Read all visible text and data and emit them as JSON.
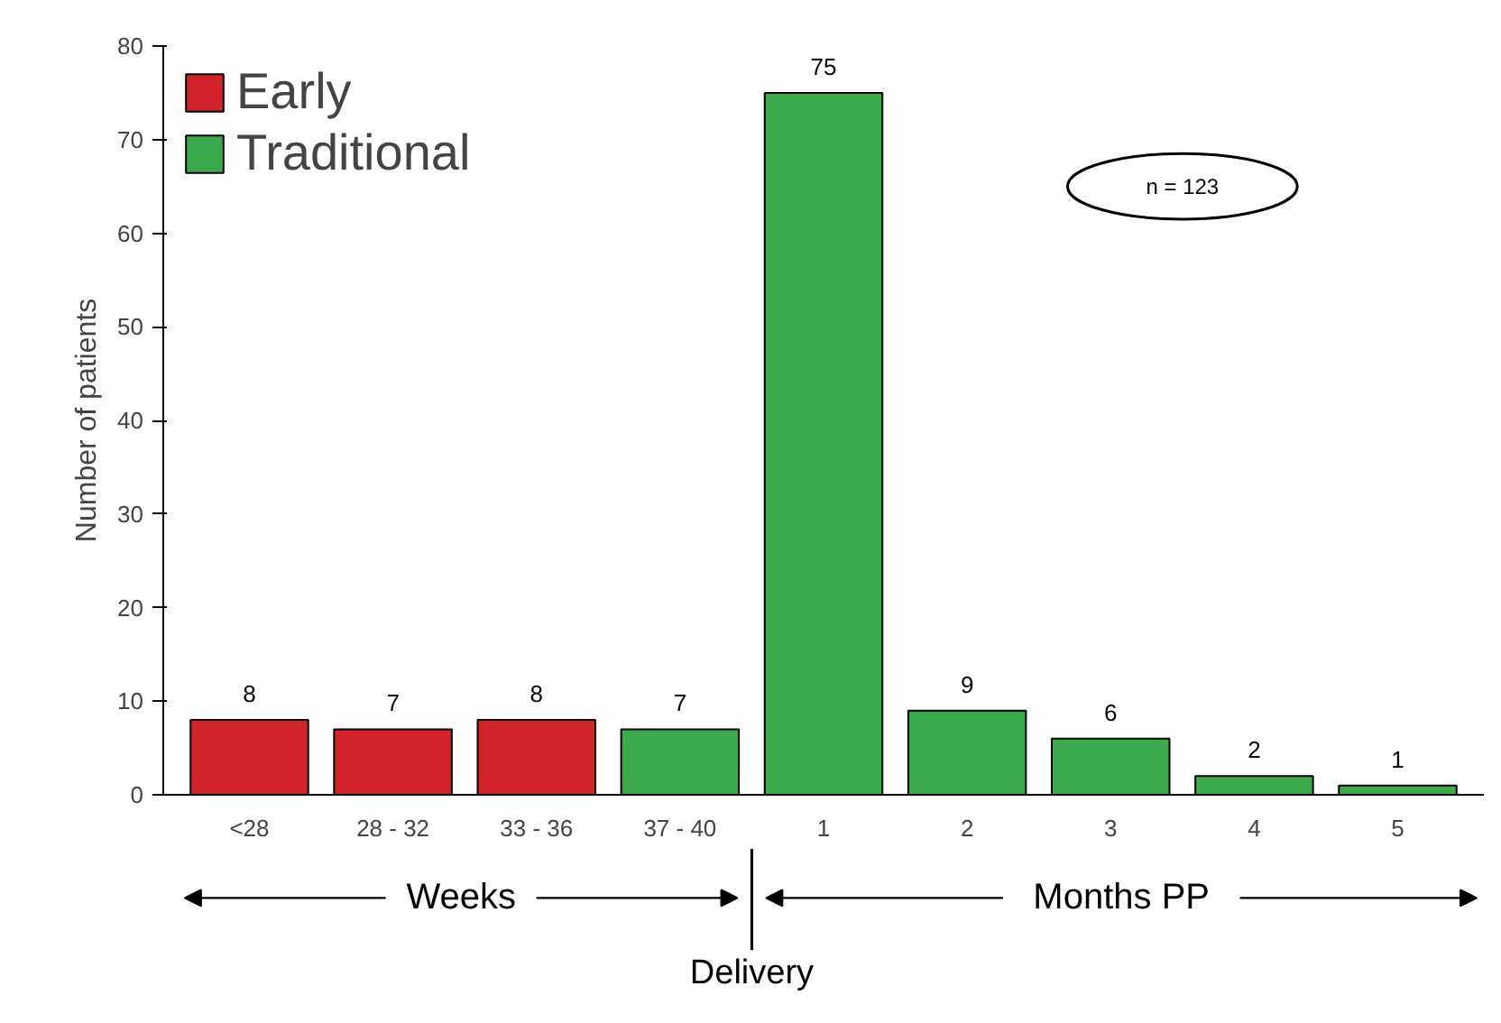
{
  "chart_data": {
    "type": "bar",
    "ylabel": "Number of patients",
    "categories": [
      "<28",
      "28 - 32",
      "33 - 36",
      "37 - 40",
      "1",
      "2",
      "3",
      "4",
      "5"
    ],
    "series": [
      {
        "name": "Early",
        "color": "#d2232a",
        "values": [
          8,
          7,
          8,
          null,
          null,
          null,
          null,
          null,
          null
        ]
      },
      {
        "name": "Traditional",
        "color": "#3aaa4a",
        "values": [
          null,
          null,
          null,
          7,
          75,
          9,
          6,
          2,
          1
        ]
      }
    ],
    "ylim": [
      0,
      80
    ],
    "yticks": [
      0,
      10,
      20,
      30,
      40,
      50,
      60,
      70,
      80
    ],
    "data_labels": true,
    "legend": "top left",
    "grid": false,
    "annotations": [
      "n = 123",
      "Weeks",
      "Months PP",
      "Delivery"
    ]
  }
}
